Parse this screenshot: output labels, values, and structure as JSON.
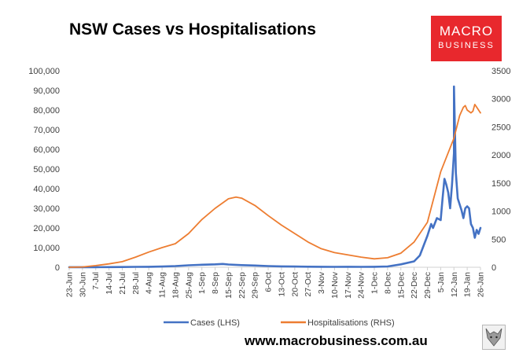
{
  "chart_data": {
    "type": "line",
    "title": "NSW Cases vs Hospitalisations",
    "x_labels": [
      "23-Jun",
      "30-Jun",
      "7-Jul",
      "14-Jul",
      "21-Jul",
      "28-Jul",
      "4-Aug",
      "11-Aug",
      "18-Aug",
      "25-Aug",
      "1-Sep",
      "8-Sep",
      "15-Sep",
      "22-Sep",
      "29-Sep",
      "6-Oct",
      "13-Oct",
      "20-Oct",
      "27-Oct",
      "3-Nov",
      "10-Nov",
      "17-Nov",
      "24-Nov",
      "1-Dec",
      "8-Dec",
      "15-Dec",
      "22-Dec",
      "29-Dec",
      "5-Jan",
      "12-Jan",
      "19-Jan",
      "26-Jan"
    ],
    "y_left": {
      "min": 0,
      "max": 100000,
      "ticks": [
        0,
        10000,
        20000,
        30000,
        40000,
        50000,
        60000,
        70000,
        80000,
        90000,
        100000
      ],
      "tick_labels": [
        "0",
        "10,000",
        "20,000",
        "30,000",
        "40,000",
        "50,000",
        "60,000",
        "70,000",
        "80,000",
        "90,000",
        "100,000"
      ]
    },
    "y_right": {
      "min": 0,
      "max": 3500,
      "ticks": [
        0,
        500,
        1000,
        1500,
        2000,
        2500,
        3000,
        3500
      ],
      "tick_labels": [
        "0",
        "500",
        "1000",
        "1500",
        "2000",
        "2500",
        "3000",
        "3500"
      ]
    },
    "grid": false,
    "legend_position": "bottom",
    "series": [
      {
        "name": "Cases (LHS)",
        "axis": "left",
        "color": "#4472c4",
        "points": [
          [
            "23-Jun",
            20
          ],
          [
            "30-Jun",
            30
          ],
          [
            "7-Jul",
            40
          ],
          [
            "14-Jul",
            100
          ],
          [
            "21-Jul",
            120
          ],
          [
            "28-Jul",
            200
          ],
          [
            "4-Aug",
            250
          ],
          [
            "11-Aug",
            350
          ],
          [
            "18-Aug",
            600
          ],
          [
            "25-Aug",
            1000
          ],
          [
            "1-Sep",
            1300
          ],
          [
            "8-Sep",
            1500
          ],
          [
            "12-Sep",
            1700
          ],
          [
            "15-Sep",
            1400
          ],
          [
            "22-Sep",
            1100
          ],
          [
            "29-Sep",
            900
          ],
          [
            "6-Oct",
            600
          ],
          [
            "13-Oct",
            450
          ],
          [
            "20-Oct",
            350
          ],
          [
            "27-Oct",
            300
          ],
          [
            "3-Nov",
            250
          ],
          [
            "10-Nov",
            200
          ],
          [
            "17-Nov",
            220
          ],
          [
            "24-Nov",
            200
          ],
          [
            "1-Dec",
            250
          ],
          [
            "8-Dec",
            400
          ],
          [
            "15-Dec",
            1500
          ],
          [
            "22-Dec",
            3000
          ],
          [
            "25-Dec",
            6000
          ],
          [
            "27-Dec",
            11000
          ],
          [
            "29-Dec",
            16000
          ],
          [
            "31-Dec",
            22000
          ],
          [
            "1-Jan",
            20000
          ],
          [
            "3-Jan",
            25000
          ],
          [
            "5-Jan",
            24000
          ],
          [
            "6-Jan",
            35000
          ],
          [
            "7-Jan",
            45000
          ],
          [
            "8-Jan",
            42000
          ],
          [
            "9-Jan",
            38000
          ],
          [
            "10-Jan",
            30000
          ],
          [
            "11-Jan",
            42000
          ],
          [
            "12-Jan",
            58000
          ],
          [
            "12-Jan",
            92000
          ],
          [
            "13-Jan",
            48000
          ],
          [
            "14-Jan",
            35000
          ],
          [
            "15-Jan",
            32000
          ],
          [
            "16-Jan",
            29000
          ],
          [
            "17-Jan",
            25000
          ],
          [
            "18-Jan",
            30000
          ],
          [
            "19-Jan",
            31000
          ],
          [
            "20-Jan",
            30000
          ],
          [
            "21-Jan",
            22000
          ],
          [
            "22-Jan",
            20000
          ],
          [
            "23-Jan",
            15000
          ],
          [
            "24-Jan",
            19000
          ],
          [
            "25-Jan",
            17000
          ],
          [
            "26-Jan",
            20000
          ]
        ]
      },
      {
        "name": "Hospitalisations (RHS)",
        "axis": "right",
        "color": "#ed7d31",
        "points": [
          [
            "23-Jun",
            0
          ],
          [
            "30-Jun",
            5
          ],
          [
            "7-Jul",
            30
          ],
          [
            "14-Jul",
            60
          ],
          [
            "21-Jul",
            100
          ],
          [
            "28-Jul",
            180
          ],
          [
            "4-Aug",
            270
          ],
          [
            "11-Aug",
            350
          ],
          [
            "18-Aug",
            420
          ],
          [
            "25-Aug",
            600
          ],
          [
            "1-Sep",
            850
          ],
          [
            "8-Sep",
            1050
          ],
          [
            "15-Sep",
            1220
          ],
          [
            "19-Sep",
            1250
          ],
          [
            "22-Sep",
            1230
          ],
          [
            "29-Sep",
            1100
          ],
          [
            "6-Oct",
            920
          ],
          [
            "13-Oct",
            750
          ],
          [
            "20-Oct",
            600
          ],
          [
            "27-Oct",
            450
          ],
          [
            "3-Nov",
            330
          ],
          [
            "10-Nov",
            260
          ],
          [
            "17-Nov",
            220
          ],
          [
            "24-Nov",
            180
          ],
          [
            "1-Dec",
            150
          ],
          [
            "8-Dec",
            170
          ],
          [
            "15-Dec",
            250
          ],
          [
            "22-Dec",
            450
          ],
          [
            "29-Dec",
            800
          ],
          [
            "5-Jan",
            1700
          ],
          [
            "12-Jan",
            2300
          ],
          [
            "15-Jan",
            2700
          ],
          [
            "17-Jan",
            2850
          ],
          [
            "18-Jan",
            2880
          ],
          [
            "19-Jan",
            2800
          ],
          [
            "21-Jan",
            2750
          ],
          [
            "22-Jan",
            2780
          ],
          [
            "23-Jan",
            2900
          ],
          [
            "24-Jan",
            2850
          ],
          [
            "25-Jan",
            2800
          ],
          [
            "26-Jan",
            2750
          ]
        ]
      }
    ]
  },
  "site_url": "www.macrobusiness.com.au",
  "logo": {
    "line1": "MACRO",
    "line2": "BUSINESS",
    "color": "#e8282d"
  },
  "mascot_icon": "wolf-icon"
}
